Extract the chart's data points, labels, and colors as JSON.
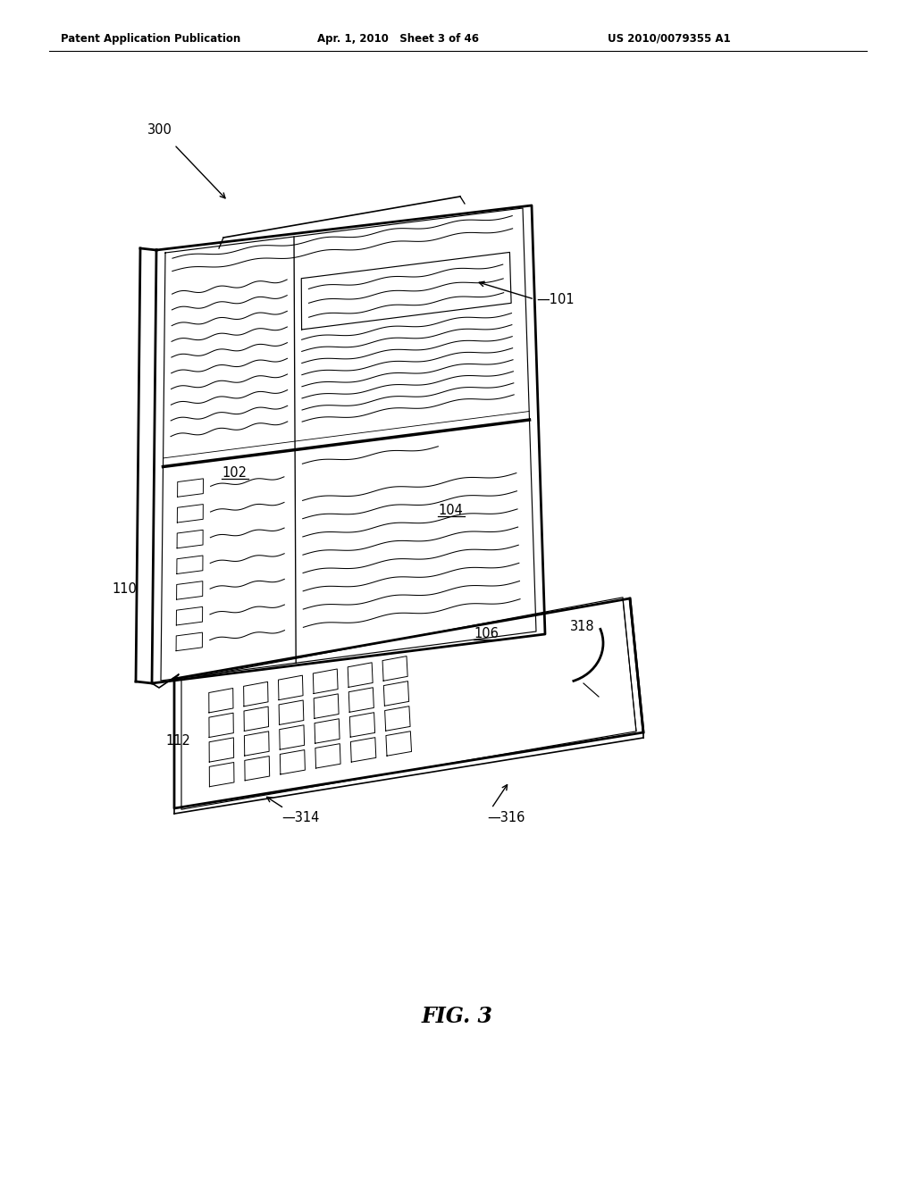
{
  "title": "FIG. 3",
  "header_left": "Patent Application Publication",
  "header_middle": "Apr. 1, 2010   Sheet 3 of 46",
  "header_right": "US 2010/0079355 A1",
  "background_color": "#ffffff",
  "line_color": "#000000",
  "fig_caption": "FIG. 3"
}
